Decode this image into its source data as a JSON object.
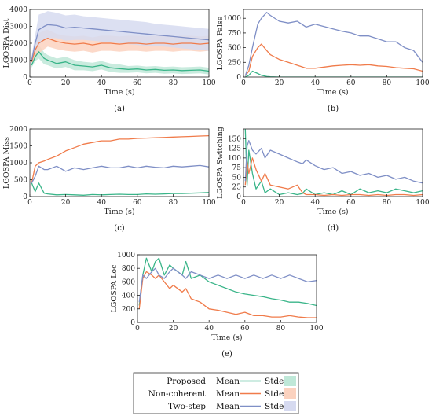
{
  "colors": {
    "proposed": "#3ab589",
    "non_coherent": "#f07b4a",
    "two_step": "#7f8fc6",
    "proposed_band": "#bfe8d8",
    "non_coherent_band": "#fbd2bf",
    "two_step_band": "#d6daf0"
  },
  "legend": {
    "rows": [
      {
        "label": "Proposed",
        "mean": "Mean",
        "stdev": "Stdev",
        "series": "proposed"
      },
      {
        "label": "Non-coherent",
        "mean": "Mean",
        "stdev": "Stdev",
        "series": "non_coherent"
      },
      {
        "label": "Two-step",
        "mean": "Mean",
        "stdev": "Stdev",
        "series": "two_step"
      }
    ]
  },
  "chart_data": [
    {
      "type": "line",
      "panel_label": "(a)",
      "xlabel": "Time (s)",
      "ylabel": "LGOSPA Dist",
      "xlim": [
        0,
        100
      ],
      "ylim": [
        0,
        4000
      ],
      "xticks": [
        "0",
        "20",
        "40",
        "60",
        "80",
        "100"
      ],
      "yticks": [
        "0",
        "1000",
        "2000",
        "3000",
        "4000"
      ],
      "x": [
        1,
        3,
        5,
        8,
        10,
        15,
        20,
        25,
        30,
        35,
        40,
        45,
        50,
        55,
        60,
        65,
        70,
        75,
        80,
        85,
        90,
        95,
        100
      ],
      "series": [
        {
          "name": "Proposed",
          "key": "proposed",
          "values": [
            700,
            1200,
            1500,
            1100,
            1000,
            800,
            900,
            700,
            650,
            600,
            700,
            550,
            500,
            450,
            480,
            420,
            450,
            400,
            420,
            380,
            400,
            420,
            350
          ],
          "stdev": [
            150,
            250,
            400,
            350,
            300,
            300,
            300,
            300,
            250,
            250,
            250,
            250,
            250,
            200,
            200,
            200,
            200,
            200,
            200,
            200,
            200,
            200,
            200
          ]
        },
        {
          "name": "Non-coherent",
          "key": "non_coherent",
          "values": [
            900,
            1600,
            2000,
            2200,
            2300,
            2100,
            2000,
            1950,
            2000,
            1900,
            2000,
            2000,
            1950,
            2000,
            2000,
            1950,
            2000,
            2000,
            1950,
            2000,
            2000,
            1950,
            2000
          ],
          "stdev": [
            200,
            400,
            600,
            550,
            500,
            450,
            450,
            450,
            450,
            450,
            450,
            450,
            450,
            450,
            450,
            450,
            450,
            450,
            450,
            450,
            450,
            450,
            450
          ]
        },
        {
          "name": "Two-step",
          "key": "two_step",
          "values": [
            1000,
            2000,
            2800,
            3000,
            3100,
            3050,
            2900,
            2950,
            2900,
            2850,
            2800,
            2750,
            2700,
            2650,
            2600,
            2550,
            2500,
            2450,
            2400,
            2350,
            2300,
            2250,
            2200
          ],
          "stdev": [
            250,
            500,
            900,
            800,
            800,
            750,
            750,
            750,
            700,
            700,
            700,
            700,
            700,
            700,
            700,
            700,
            650,
            650,
            650,
            650,
            650,
            650,
            650
          ]
        }
      ]
    },
    {
      "type": "line",
      "panel_label": "(b)",
      "xlabel": "Time (s)",
      "ylabel": "LGOSPA False",
      "xlim": [
        0,
        100
      ],
      "ylim": [
        0,
        1150
      ],
      "xticks": [
        "0",
        "20",
        "40",
        "60",
        "80",
        "100"
      ],
      "yticks": [
        "0",
        "250",
        "500",
        "750",
        "1000"
      ],
      "x": [
        1,
        3,
        5,
        8,
        10,
        13,
        15,
        20,
        25,
        30,
        35,
        40,
        45,
        50,
        55,
        60,
        65,
        70,
        75,
        80,
        85,
        90,
        95,
        100
      ],
      "series": [
        {
          "name": "Proposed",
          "key": "proposed",
          "values": [
            0,
            30,
            100,
            60,
            30,
            10,
            5,
            0,
            0,
            0,
            0,
            0,
            0,
            0,
            0,
            0,
            0,
            0,
            0,
            0,
            0,
            0,
            0,
            0
          ]
        },
        {
          "name": "Non-coherent",
          "key": "non_coherent",
          "values": [
            20,
            100,
            350,
            500,
            560,
            450,
            380,
            300,
            250,
            200,
            150,
            150,
            170,
            190,
            200,
            210,
            200,
            210,
            190,
            180,
            160,
            150,
            140,
            100
          ]
        },
        {
          "name": "Two-step",
          "key": "two_step",
          "values": [
            20,
            200,
            500,
            900,
            1000,
            1100,
            1050,
            950,
            920,
            950,
            850,
            900,
            860,
            820,
            780,
            750,
            700,
            700,
            650,
            600,
            600,
            500,
            450,
            250
          ]
        }
      ]
    },
    {
      "type": "line",
      "panel_label": "(c)",
      "xlabel": "Time (s)",
      "ylabel": "LGOSPA Miss",
      "xlim": [
        0,
        100
      ],
      "ylim": [
        0,
        2000
      ],
      "xticks": [
        "0",
        "20",
        "40",
        "60",
        "80",
        "100"
      ],
      "yticks": [
        "0",
        "500",
        "1000",
        "1500",
        "2000"
      ],
      "x": [
        1,
        3,
        5,
        8,
        10,
        15,
        20,
        25,
        30,
        35,
        40,
        45,
        50,
        55,
        60,
        65,
        70,
        75,
        80,
        85,
        90,
        95,
        100
      ],
      "series": [
        {
          "name": "Proposed",
          "key": "proposed",
          "values": [
            400,
            150,
            400,
            100,
            80,
            50,
            60,
            50,
            40,
            60,
            50,
            60,
            70,
            60,
            60,
            80,
            70,
            80,
            90,
            90,
            100,
            110,
            120
          ]
        },
        {
          "name": "Non-coherent",
          "key": "non_coherent",
          "values": [
            400,
            900,
            1000,
            1050,
            1100,
            1200,
            1350,
            1450,
            1550,
            1600,
            1650,
            1650,
            1700,
            1700,
            1720,
            1730,
            1740,
            1750,
            1760,
            1770,
            1780,
            1790,
            1800
          ]
        },
        {
          "name": "Two-step",
          "key": "two_step",
          "values": [
            400,
            600,
            900,
            800,
            800,
            900,
            750,
            850,
            800,
            850,
            900,
            850,
            850,
            900,
            850,
            900,
            870,
            850,
            900,
            880,
            900,
            920,
            880
          ]
        }
      ]
    },
    {
      "type": "line",
      "panel_label": "(d)",
      "xlabel": "Time (s)",
      "ylabel": "LGOSPA Switching",
      "xlim": [
        0,
        100
      ],
      "ylim": [
        0,
        175
      ],
      "xticks": [
        "0",
        "20",
        "40",
        "60",
        "80",
        "100"
      ],
      "yticks": [
        "0",
        "25",
        "50",
        "75",
        "100",
        "125",
        "150"
      ],
      "x": [
        1,
        2,
        3,
        5,
        7,
        10,
        12,
        15,
        20,
        25,
        30,
        33,
        35,
        40,
        45,
        50,
        55,
        60,
        65,
        70,
        75,
        80,
        85,
        90,
        95,
        100
      ],
      "series": [
        {
          "name": "Proposed",
          "key": "proposed",
          "values": [
            175,
            30,
            120,
            60,
            20,
            40,
            10,
            20,
            5,
            10,
            5,
            8,
            20,
            5,
            10,
            5,
            15,
            5,
            20,
            10,
            15,
            10,
            20,
            15,
            10,
            15
          ]
        },
        {
          "name": "Non-coherent",
          "key": "non_coherent",
          "values": [
            30,
            90,
            60,
            100,
            70,
            40,
            60,
            30,
            25,
            20,
            30,
            10,
            5,
            5,
            3,
            5,
            3,
            5,
            5,
            3,
            5,
            3,
            5,
            5,
            3,
            5
          ]
        },
        {
          "name": "Two-step",
          "key": "two_step",
          "values": [
            40,
            130,
            145,
            120,
            110,
            125,
            100,
            120,
            110,
            100,
            90,
            85,
            95,
            80,
            70,
            75,
            60,
            65,
            55,
            60,
            50,
            55,
            45,
            50,
            40,
            35
          ]
        }
      ]
    },
    {
      "type": "line",
      "panel_label": "(e)",
      "xlabel": "Time (s)",
      "ylabel": "LGOSPA Loc",
      "xlim": [
        0,
        100
      ],
      "ylim": [
        0,
        1000
      ],
      "xticks": [
        "0",
        "20",
        "40",
        "60",
        "80",
        "100"
      ],
      "yticks": [
        "0",
        "200",
        "400",
        "600",
        "800",
        "1000"
      ],
      "x": [
        1,
        3,
        5,
        8,
        10,
        12,
        15,
        18,
        20,
        25,
        27,
        30,
        35,
        40,
        45,
        50,
        55,
        60,
        65,
        70,
        75,
        80,
        85,
        90,
        95,
        100
      ],
      "series": [
        {
          "name": "Proposed",
          "key": "proposed",
          "values": [
            250,
            700,
            950,
            750,
            900,
            950,
            700,
            850,
            800,
            700,
            900,
            650,
            700,
            600,
            550,
            500,
            450,
            420,
            400,
            380,
            350,
            330,
            300,
            300,
            280,
            250
          ]
        },
        {
          "name": "Non-coherent",
          "key": "non_coherent",
          "values": [
            200,
            650,
            750,
            700,
            650,
            700,
            600,
            500,
            550,
            450,
            500,
            350,
            300,
            200,
            180,
            150,
            120,
            150,
            100,
            100,
            80,
            80,
            100,
            80,
            70,
            70
          ]
        },
        {
          "name": "Two-step",
          "key": "two_step",
          "values": [
            300,
            700,
            650,
            750,
            800,
            700,
            650,
            750,
            800,
            700,
            650,
            750,
            700,
            650,
            700,
            650,
            700,
            650,
            700,
            650,
            700,
            650,
            700,
            650,
            600,
            620
          ]
        }
      ]
    }
  ]
}
